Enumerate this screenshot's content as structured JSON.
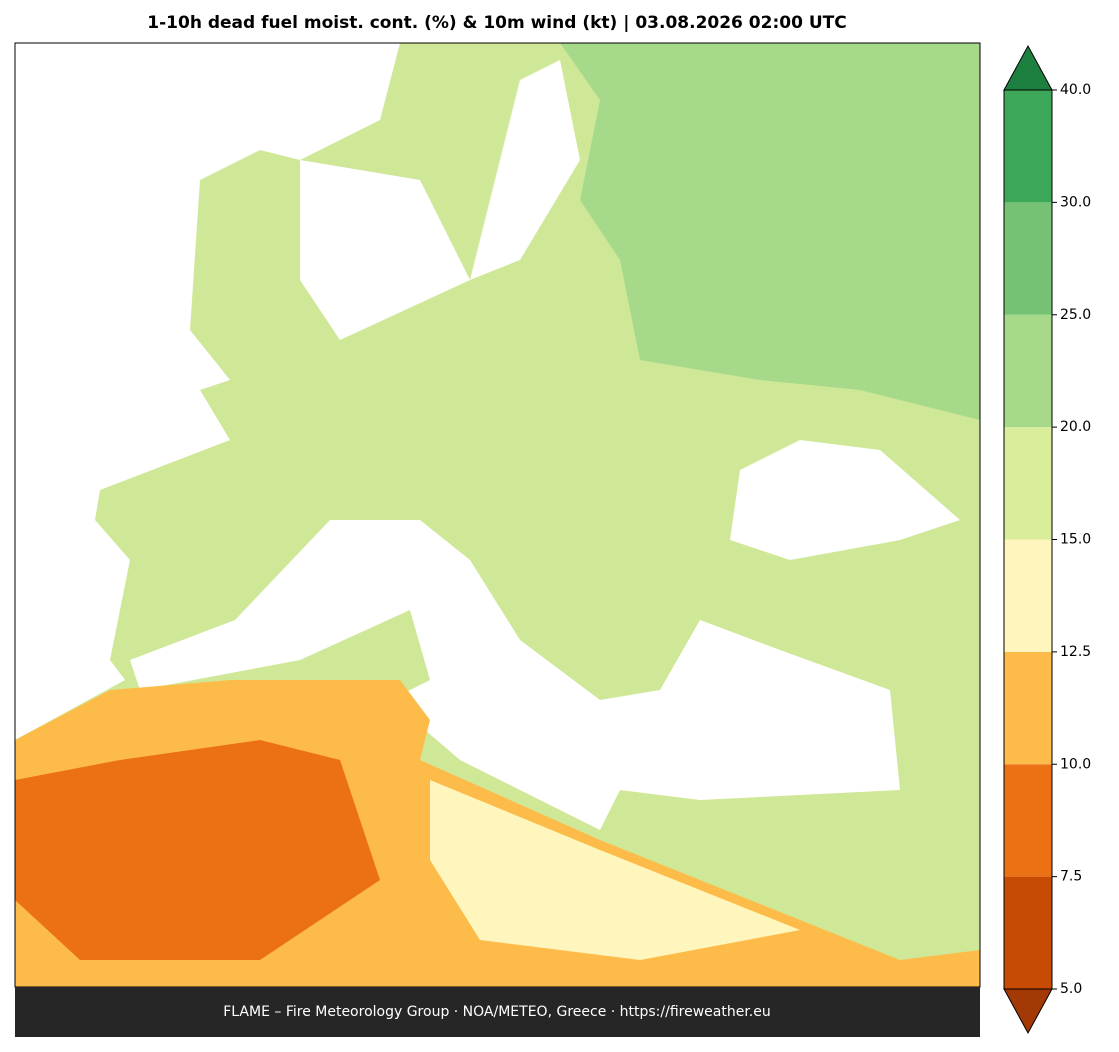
{
  "title": "1-10h dead fuel moist. cont. (%) & 10m wind (kt)  |  03.08.2026 02:00 UTC",
  "footer": "FLAME – Fire Meteorology Group · NOA/METEO, Greece · https://fireweather.eu",
  "colorbar": {
    "ticks": [
      {
        "value": 5,
        "label": "5.0"
      },
      {
        "value": 7.5,
        "label": "7.5"
      },
      {
        "value": 10,
        "label": "10.0"
      },
      {
        "value": 12.5,
        "label": "12.5"
      },
      {
        "value": 15,
        "label": "15.0"
      },
      {
        "value": 20,
        "label": "20.0"
      },
      {
        "value": 25,
        "label": "25.0"
      },
      {
        "value": 30,
        "label": "30.0"
      },
      {
        "value": 40,
        "label": "40.0"
      }
    ],
    "colors": [
      "#c84b03",
      "#ec7014",
      "#fdbc4a",
      "#fef6bd",
      "#d9ed9a",
      "#a6d98a",
      "#76c275",
      "#3ea85a"
    ],
    "under_color": "#a33a05",
    "over_color": "#1e8040"
  }
}
